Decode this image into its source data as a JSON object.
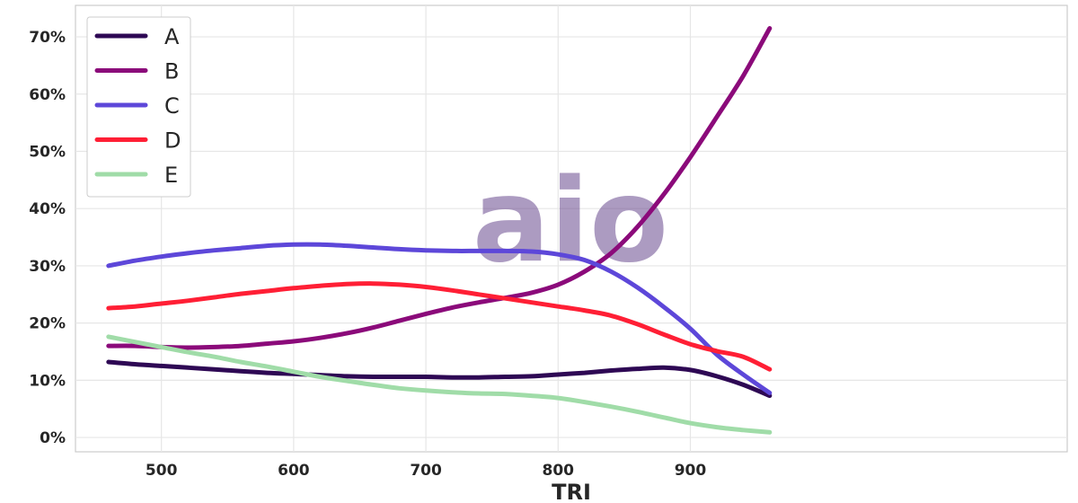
{
  "chart_data": {
    "type": "line",
    "xlabel": "TRI",
    "ylabel": "",
    "xlim": [
      435,
      1185
    ],
    "ylim": [
      -0.025,
      0.755
    ],
    "xticks": [
      500,
      600,
      700,
      800,
      900
    ],
    "yticks": [
      0,
      0.1,
      0.2,
      0.3,
      0.4,
      0.5,
      0.6,
      0.7
    ],
    "ytick_format": "percent",
    "grid": true,
    "legend_position": "top-left",
    "x": [
      460,
      480,
      500,
      520,
      540,
      560,
      580,
      600,
      620,
      640,
      660,
      680,
      700,
      720,
      740,
      760,
      780,
      800,
      820,
      840,
      860,
      880,
      900,
      920,
      940,
      960
    ],
    "series": [
      {
        "name": "A",
        "color": "#2e0854",
        "values": [
          0.132,
          0.128,
          0.125,
          0.122,
          0.119,
          0.116,
          0.113,
          0.111,
          0.109,
          0.107,
          0.106,
          0.106,
          0.106,
          0.105,
          0.105,
          0.106,
          0.107,
          0.11,
          0.113,
          0.117,
          0.12,
          0.122,
          0.118,
          0.107,
          0.092,
          0.073
        ]
      },
      {
        "name": "B",
        "color": "#8b0a7a",
        "values": [
          0.16,
          0.16,
          0.158,
          0.157,
          0.158,
          0.16,
          0.164,
          0.168,
          0.174,
          0.182,
          0.192,
          0.204,
          0.216,
          0.227,
          0.236,
          0.244,
          0.253,
          0.267,
          0.29,
          0.322,
          0.368,
          0.425,
          0.49,
          0.56,
          0.632,
          0.715
        ]
      },
      {
        "name": "C",
        "color": "#5d47d9",
        "values": [
          0.3,
          0.309,
          0.316,
          0.322,
          0.327,
          0.331,
          0.335,
          0.337,
          0.337,
          0.335,
          0.332,
          0.329,
          0.327,
          0.326,
          0.326,
          0.326,
          0.325,
          0.32,
          0.31,
          0.29,
          0.262,
          0.228,
          0.19,
          0.145,
          0.11,
          0.078
        ]
      },
      {
        "name": "D",
        "color": "#ff1f35",
        "values": [
          0.226,
          0.229,
          0.234,
          0.239,
          0.245,
          0.251,
          0.256,
          0.261,
          0.265,
          0.268,
          0.269,
          0.267,
          0.263,
          0.257,
          0.25,
          0.243,
          0.236,
          0.229,
          0.222,
          0.213,
          0.198,
          0.18,
          0.163,
          0.151,
          0.141,
          0.119
        ]
      },
      {
        "name": "E",
        "color": "#a0dca8",
        "values": [
          0.176,
          0.167,
          0.158,
          0.149,
          0.141,
          0.132,
          0.124,
          0.115,
          0.106,
          0.099,
          0.092,
          0.086,
          0.082,
          0.079,
          0.077,
          0.076,
          0.073,
          0.069,
          0.062,
          0.054,
          0.045,
          0.035,
          0.025,
          0.018,
          0.013,
          0.009
        ]
      }
    ]
  },
  "watermark": "aio"
}
